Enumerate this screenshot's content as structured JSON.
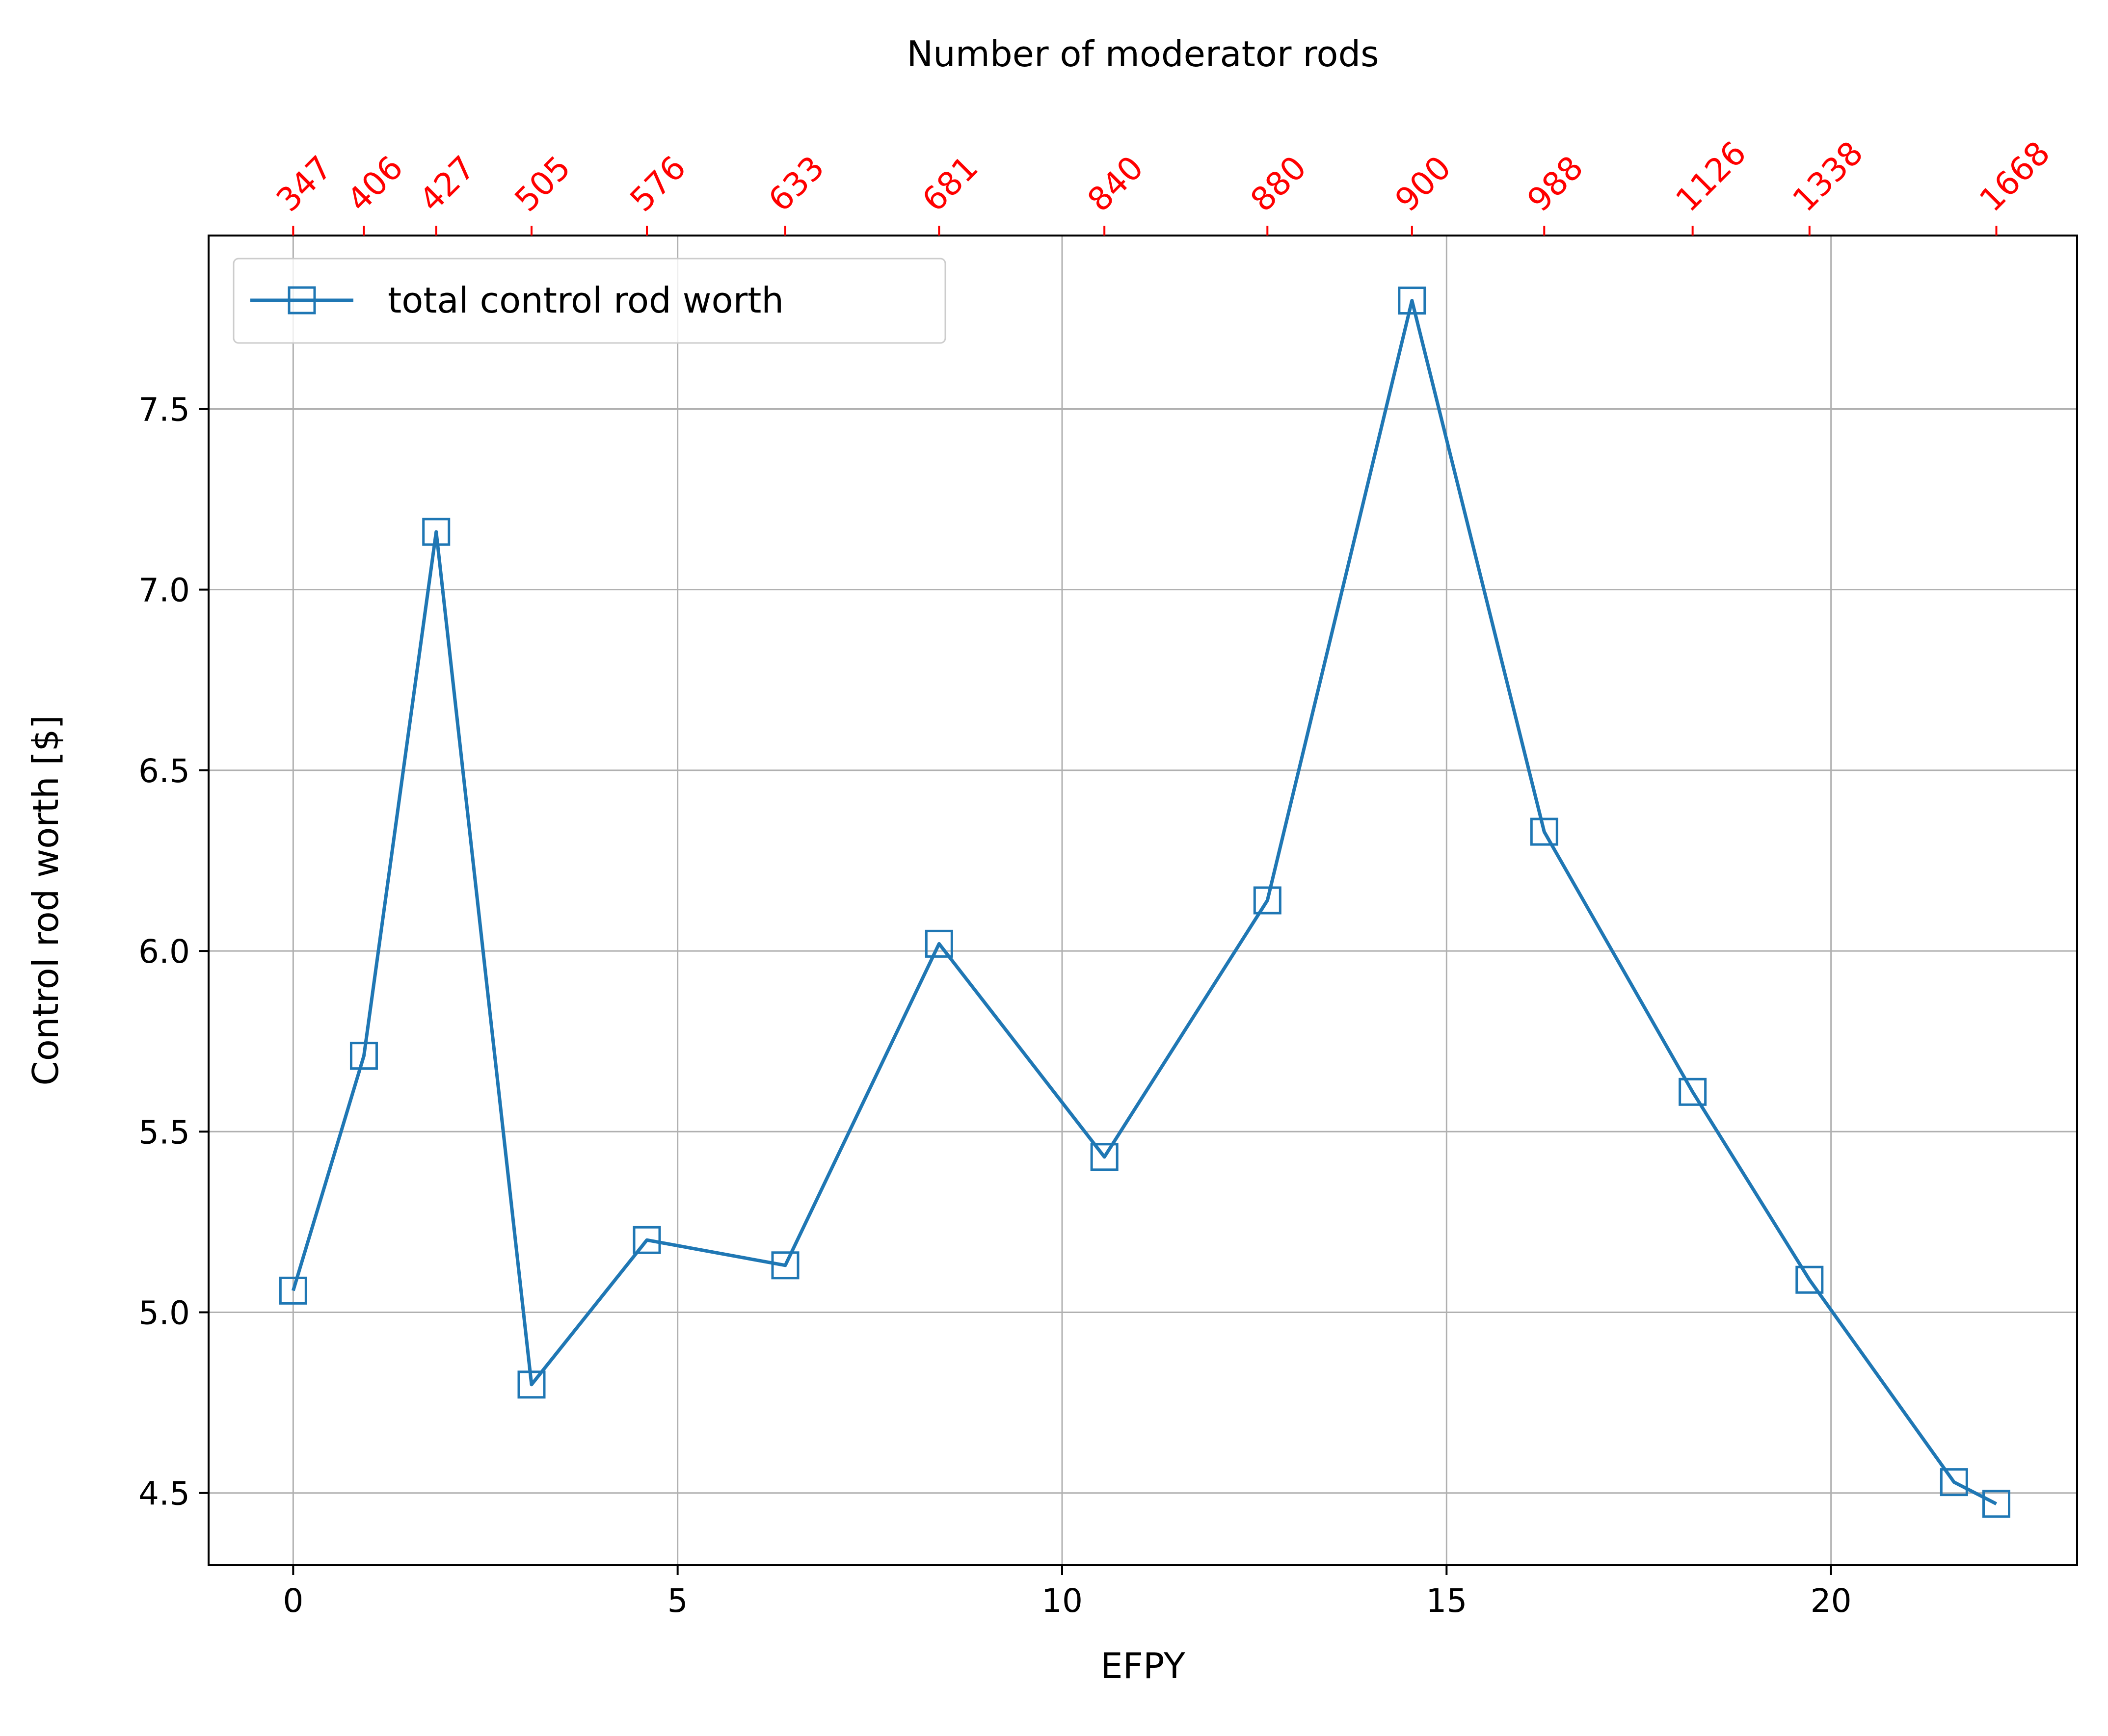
{
  "chart_data": {
    "type": "line",
    "xlabel": "EFPY",
    "ylabel": "Control rod worth [$]",
    "top_axis_label": "Number of moderator rods",
    "xlim": [
      -1.1,
      23.2
    ],
    "ylim": [
      4.3,
      7.98
    ],
    "x_ticks": [
      0,
      5,
      10,
      15,
      20
    ],
    "y_ticks": [
      4.5,
      5.0,
      5.5,
      6.0,
      6.5,
      7.0,
      7.5
    ],
    "y_tick_labels": [
      "4.5",
      "5.0",
      "5.5",
      "6.0",
      "6.5",
      "7.0",
      "7.5"
    ],
    "grid": true,
    "legend_position": "upper left",
    "series": [
      {
        "name": "total control rod worth",
        "color": "#1f77b4",
        "marker": "square-open",
        "x": [
          0,
          0.92,
          1.86,
          3.1,
          4.6,
          6.4,
          8.4,
          10.55,
          12.67,
          14.55,
          16.27,
          18.2,
          19.72,
          21.6,
          22.15
        ],
        "y": [
          5.06,
          5.71,
          7.16,
          4.8,
          5.2,
          5.13,
          6.02,
          5.43,
          6.14,
          7.8,
          6.33,
          5.61,
          5.09,
          4.53,
          4.47
        ]
      }
    ],
    "top_axis": {
      "color": "#ff0000",
      "ticks_at_x": [
        0,
        0.92,
        1.86,
        3.1,
        4.6,
        6.4,
        8.4,
        10.55,
        12.67,
        14.55,
        16.27,
        18.2,
        19.72,
        22.15
      ],
      "labels": [
        "347",
        "406",
        "427",
        "505",
        "576",
        "633",
        "681",
        "840",
        "880",
        "900",
        "988",
        "1126",
        "1338",
        "1668"
      ]
    }
  }
}
